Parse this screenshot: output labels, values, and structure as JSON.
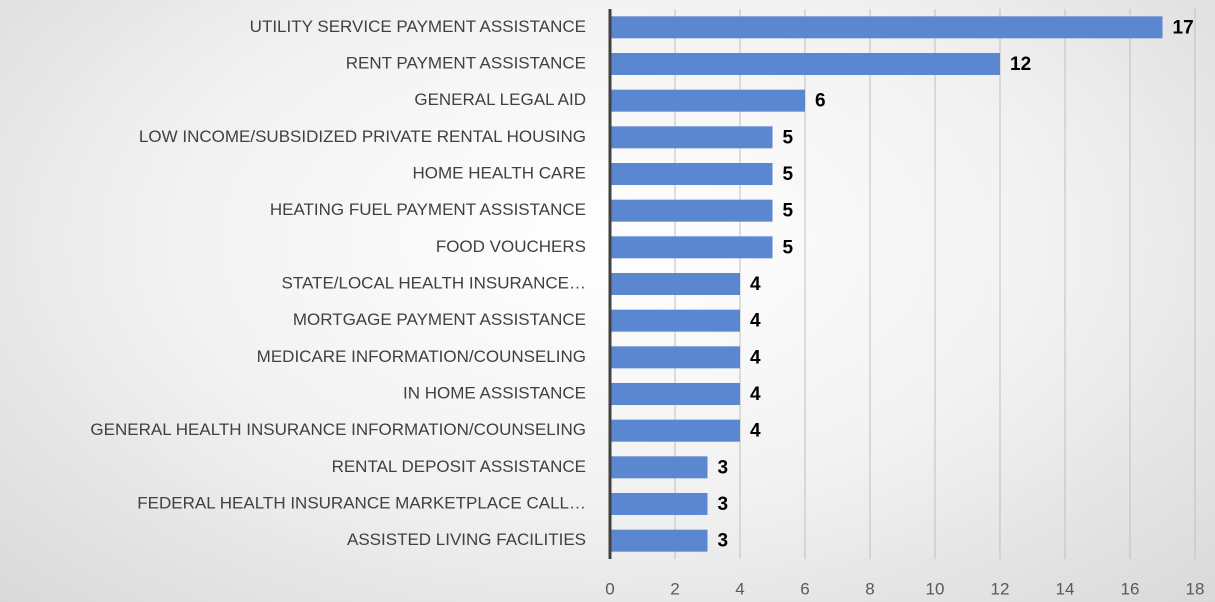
{
  "chart_data": {
    "type": "barh",
    "categories": [
      "UTILITY SERVICE PAYMENT ASSISTANCE",
      "RENT PAYMENT ASSISTANCE",
      "GENERAL LEGAL AID",
      "LOW INCOME/SUBSIDIZED PRIVATE RENTAL HOUSING",
      "HOME HEALTH CARE",
      "HEATING FUEL PAYMENT ASSISTANCE",
      "FOOD VOUCHERS",
      "STATE/LOCAL HEALTH INSURANCE…",
      "MORTGAGE PAYMENT ASSISTANCE",
      "MEDICARE INFORMATION/COUNSELING",
      "IN HOME ASSISTANCE",
      "GENERAL HEALTH INSURANCE INFORMATION/COUNSELING",
      "RENTAL DEPOSIT ASSISTANCE",
      "FEDERAL HEALTH INSURANCE MARKETPLACE CALL…",
      "ASSISTED LIVING FACILITIES"
    ],
    "values": [
      17,
      12,
      6,
      5,
      5,
      5,
      5,
      4,
      4,
      4,
      4,
      4,
      3,
      3,
      3
    ],
    "color": "#5b87d1",
    "xlim": [
      0,
      18
    ],
    "xticks": [
      0,
      2,
      4,
      6,
      8,
      10,
      12,
      14,
      16,
      18
    ],
    "grid": true
  }
}
